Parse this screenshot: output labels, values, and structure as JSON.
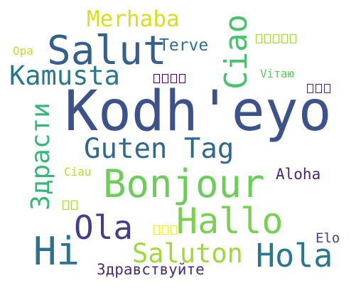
{
  "word_cloud": {
    "words": [
      {
        "text": "Kodh'eyo",
        "color": "#3b528b"
      },
      {
        "text": "Salut",
        "color": "#355f8d"
      },
      {
        "text": "Merhaba",
        "color": "#d5e21a"
      },
      {
        "text": "Kamusta",
        "color": "#2a788e"
      },
      {
        "text": "Ciao",
        "color": "#4ac16d"
      },
      {
        "text": "Terve",
        "color": "#2f6c8e"
      },
      {
        "text": "Opa",
        "color": "#c2df23"
      },
      {
        "text": "Vітаю",
        "color": "#5ec962"
      },
      {
        "text": "Здрасти",
        "color": "#35b779"
      },
      {
        "text": "Guten Tag",
        "color": "#31688e"
      },
      {
        "text": "Ciau",
        "color": "#b5de2b"
      },
      {
        "text": "Bonjour",
        "color": "#6ccd5a"
      },
      {
        "text": "Aloha",
        "color": "#482677"
      },
      {
        "text": "Hallo",
        "color": "#7ad151"
      },
      {
        "text": "Ola",
        "color": "#433e85"
      },
      {
        "text": "Hi",
        "color": "#2c728e"
      },
      {
        "text": "Saluton",
        "color": "#a0da39"
      },
      {
        "text": "Hola",
        "color": "#2a788e"
      },
      {
        "text": "Elo",
        "color": "#414487"
      },
      {
        "text": "Здравствуйте",
        "color": "#472d7b"
      }
    ],
    "unrendered_glyph_words": [
      {
        "glyph_count": 5,
        "color": "#9bd93c"
      },
      {
        "glyph_count": 4,
        "color": "#440154"
      },
      {
        "glyph_count": 3,
        "color": "#482475"
      },
      {
        "glyph_count": 2,
        "color": "#9fda3a"
      },
      {
        "glyph_count": 3,
        "color": "#fde725"
      }
    ]
  }
}
